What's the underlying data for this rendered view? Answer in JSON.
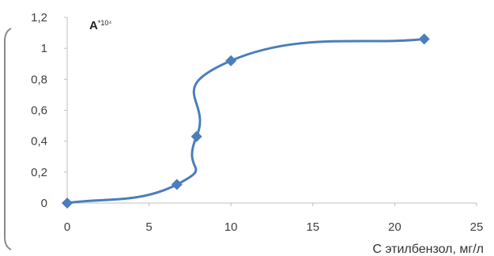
{
  "chart_data": {
    "type": "line",
    "title": "",
    "xlabel": "C этилбензол, мг/л",
    "ylabel": {
      "main": "A",
      "sup": "*10⁴"
    },
    "xlim": [
      0,
      25
    ],
    "ylim": [
      0,
      1.2
    ],
    "x_ticks": [
      "0",
      "5",
      "10",
      "15",
      "20",
      "25"
    ],
    "y_ticks": [
      "0",
      "0,2",
      "0,4",
      "0,6",
      "0,8",
      "1",
      "1,2"
    ],
    "grid": false,
    "series": [
      {
        "color": "#4a7ebb",
        "marker": "diamond",
        "smooth": true,
        "points": [
          {
            "x": 0,
            "y": 0
          },
          {
            "x": 6.7,
            "y": 0.12
          },
          {
            "x": 7.9,
            "y": 0.43
          },
          {
            "x": 10,
            "y": 0.92
          },
          {
            "x": 21.8,
            "y": 1.06
          }
        ]
      }
    ]
  }
}
